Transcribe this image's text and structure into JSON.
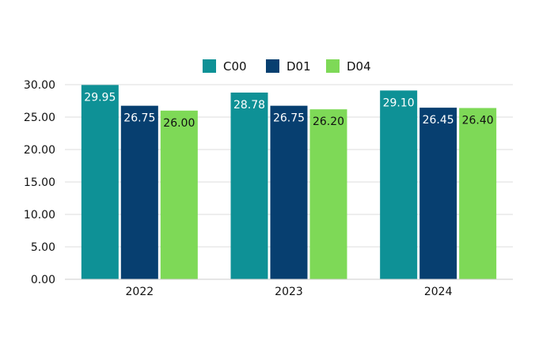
{
  "chart_data": {
    "type": "bar",
    "categories": [
      "2022",
      "2023",
      "2024"
    ],
    "series": [
      {
        "name": "C00",
        "color": "#0e9196",
        "label_color": "#ffffff",
        "values": [
          29.95,
          28.78,
          29.1
        ],
        "labels": [
          "29.95",
          "28.78",
          "29.10"
        ]
      },
      {
        "name": "D01",
        "color": "#073f70",
        "label_color": "#ffffff",
        "values": [
          26.75,
          26.75,
          26.45
        ],
        "labels": [
          "26.75",
          "26.75",
          "26.45"
        ]
      },
      {
        "name": "D04",
        "color": "#7ed957",
        "label_color": "#111111",
        "values": [
          26.0,
          26.2,
          26.4
        ],
        "labels": [
          "26.00",
          "26.20",
          "26.40"
        ]
      }
    ],
    "yticks": [
      "0.00",
      "5.00",
      "10.00",
      "15.00",
      "20.00",
      "25.00",
      "30.00"
    ],
    "ylim": [
      0,
      30
    ],
    "grid": true,
    "legend_position": "top-center",
    "gridline_color": "#dddddd"
  }
}
